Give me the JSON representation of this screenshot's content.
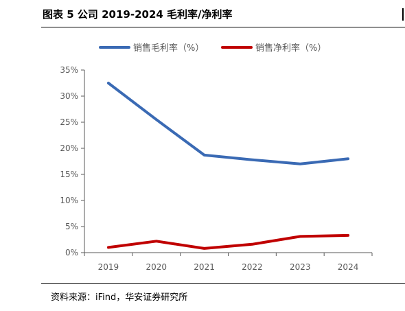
{
  "header": {
    "title": "图表 5 公司 2019-2024 毛利率/净利率"
  },
  "footer": {
    "source": "资料来源：iFind，华安证券研究所"
  },
  "colors": {
    "gross": "#3a6ab4",
    "net": "#c00000",
    "axis": "#595959",
    "text": "#595959"
  },
  "chart_data": {
    "type": "line",
    "categories": [
      "2019",
      "2020",
      "2021",
      "2022",
      "2023",
      "2024"
    ],
    "series": [
      {
        "name": "销售毛利率（%）",
        "values": [
          32.5,
          25.5,
          18.7,
          17.8,
          17.0,
          18.0
        ]
      },
      {
        "name": "销售净利率（%）",
        "values": [
          1.0,
          2.2,
          0.8,
          1.6,
          3.1,
          3.3
        ]
      }
    ],
    "yticks": [
      "0%",
      "5%",
      "10%",
      "15%",
      "20%",
      "25%",
      "30%",
      "35%"
    ],
    "ylim": [
      0,
      35
    ],
    "grid": false,
    "legend_position": "top"
  }
}
